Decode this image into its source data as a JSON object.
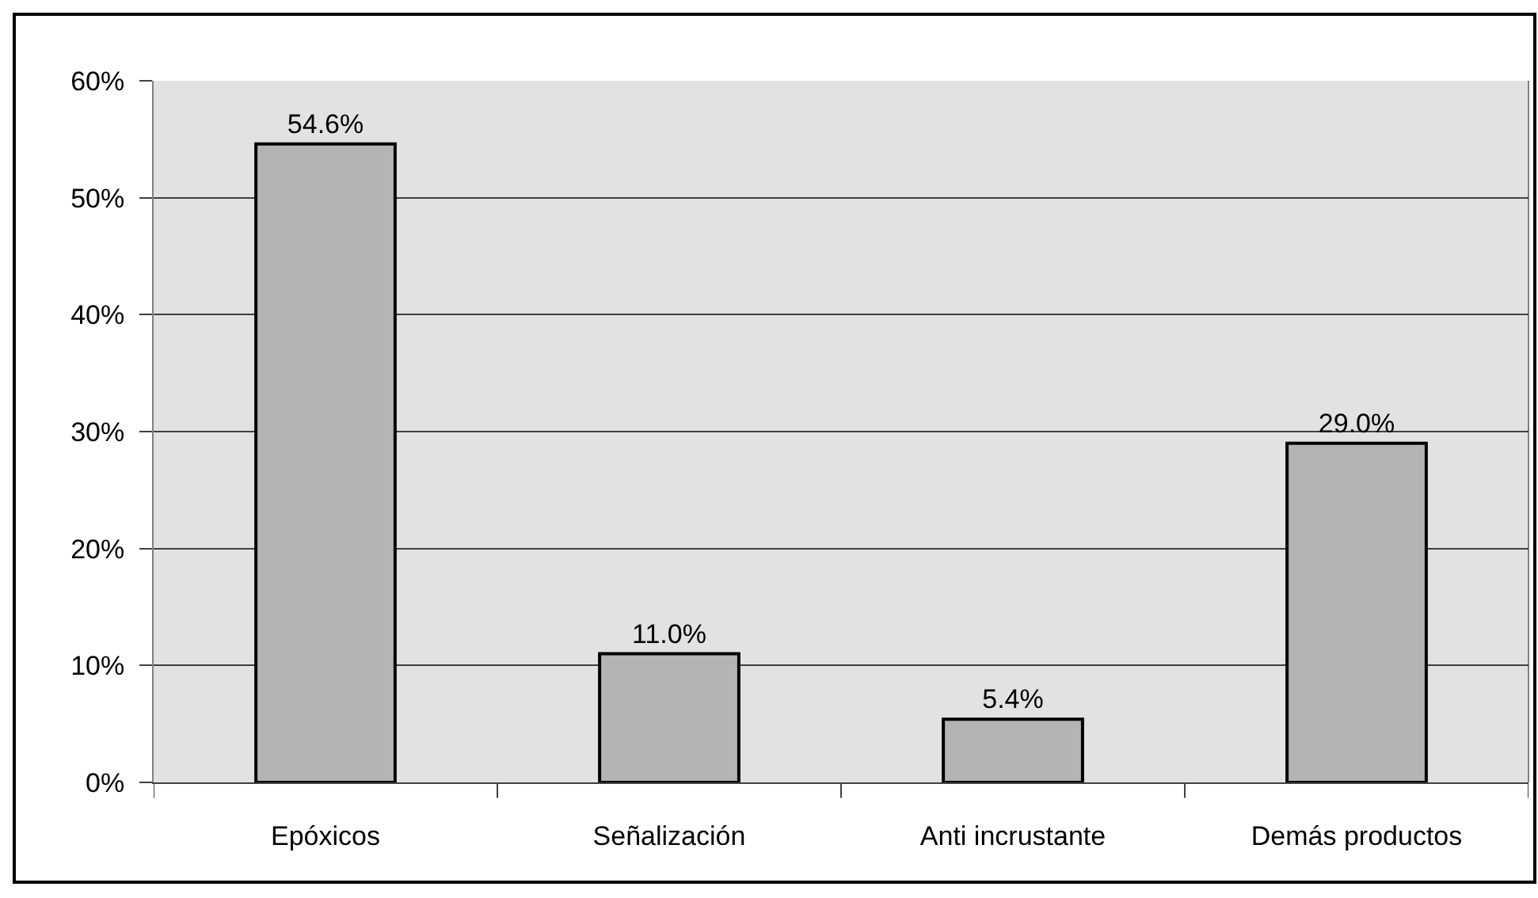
{
  "chart_data": {
    "type": "bar",
    "categories": [
      "Epóxicos",
      "Señalización",
      "Anti incrustante",
      "Demás productos"
    ],
    "values": [
      54.6,
      11.0,
      5.4,
      29.0
    ],
    "value_labels": [
      "54.6%",
      "11.0%",
      "5.4%",
      "29.0%"
    ],
    "color": "#b4b4b4",
    "ylim": [
      0,
      60
    ],
    "yticks": [
      {
        "value": 0,
        "label": "0%"
      },
      {
        "value": 10,
        "label": "10%"
      },
      {
        "value": 20,
        "label": "20%"
      },
      {
        "value": 30,
        "label": "30%"
      },
      {
        "value": 40,
        "label": "40%"
      },
      {
        "value": 50,
        "label": "50%"
      },
      {
        "value": 60,
        "label": "60%"
      }
    ],
    "grid": "y"
  }
}
